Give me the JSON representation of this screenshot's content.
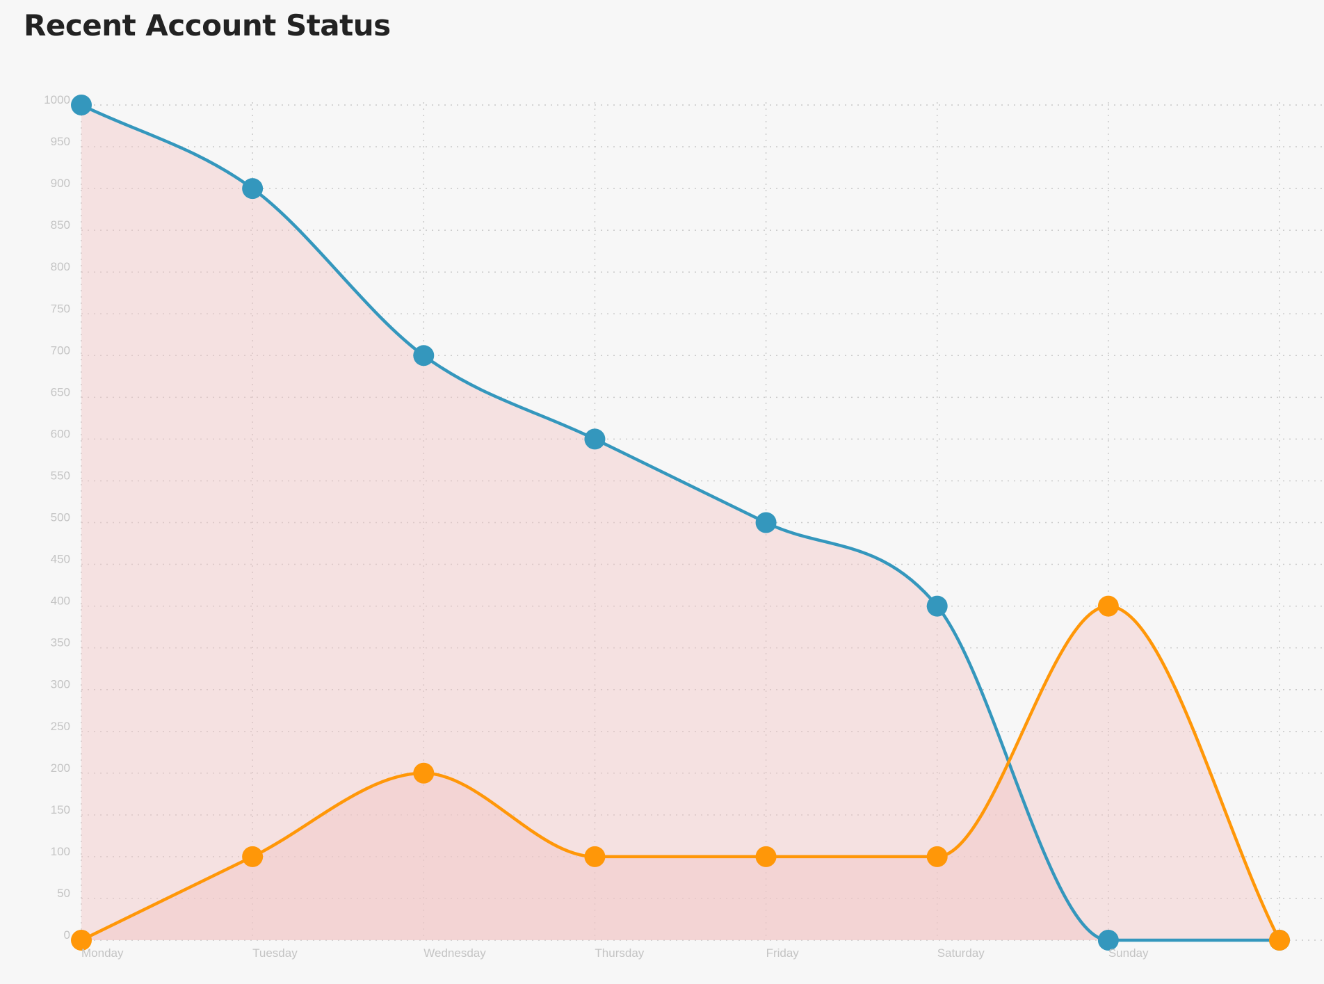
{
  "chart_data": {
    "type": "line",
    "title": "Recent Account Status",
    "xlabel": "",
    "ylabel": "",
    "categories": [
      "Monday",
      "Tuesday",
      "Wednesday",
      "Thursday",
      "Friday",
      "Saturday",
      "Sunday",
      ""
    ],
    "ylim": [
      0,
      1000
    ],
    "yticks": [
      0,
      50,
      100,
      150,
      200,
      250,
      300,
      350,
      400,
      450,
      500,
      550,
      600,
      650,
      700,
      750,
      800,
      850,
      900,
      950,
      1000
    ],
    "grid": true,
    "legend": "none",
    "smooth": true,
    "series": [
      {
        "values": [
          1000,
          900,
          700,
          600,
          500,
          400,
          0,
          0
        ],
        "color": "#3497bd",
        "fill": "#f2c6c6"
      },
      {
        "values": [
          0,
          100,
          200,
          100,
          100,
          100,
          400,
          0
        ],
        "color": "#ff9708",
        "fill": "#f2c6c6"
      }
    ]
  }
}
